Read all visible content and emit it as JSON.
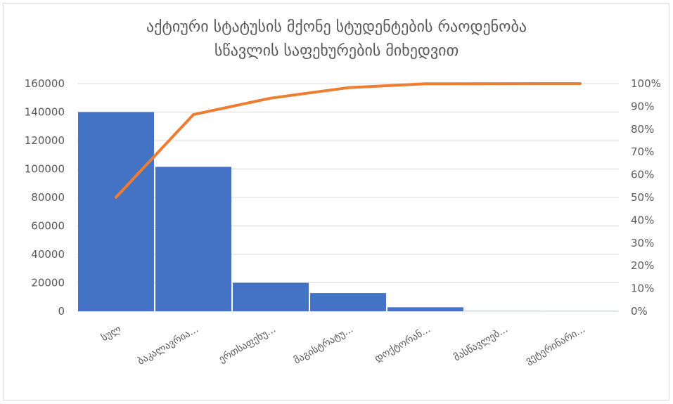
{
  "chart_data": {
    "type": "bar",
    "subtype": "pareto",
    "title_lines": [
      "აქტიური სტატუსის მქონე სტუდენტების რაოდენობა",
      "სწავლის საფეხურების მიხედვით"
    ],
    "categories": [
      "სულ",
      "ბაკალავრია...",
      "ერთსაფეხუ...",
      "მაგისტრატუ...",
      "დოქტორან...",
      "მასწავლებ...",
      "ვეტერინარი..."
    ],
    "values": [
      140000,
      101500,
      20000,
      12800,
      2800,
      150,
      80
    ],
    "cumulative_percent": [
      50.1,
      86.4,
      93.6,
      98.2,
      99.9,
      99.97,
      100.0
    ],
    "y_left": {
      "min": 0,
      "max": 160000,
      "ticks": [
        "0",
        "20000",
        "40000",
        "60000",
        "80000",
        "100000",
        "120000",
        "140000",
        "160000"
      ]
    },
    "y_right": {
      "min": 0,
      "max": 100,
      "ticks": [
        "0%",
        "10%",
        "20%",
        "30%",
        "40%",
        "50%",
        "60%",
        "70%",
        "80%",
        "90%",
        "100%"
      ]
    },
    "grid": true,
    "bar_color": "#4472c4",
    "line_color": "#ed7d31",
    "grid_color": "#d9d9d9"
  }
}
